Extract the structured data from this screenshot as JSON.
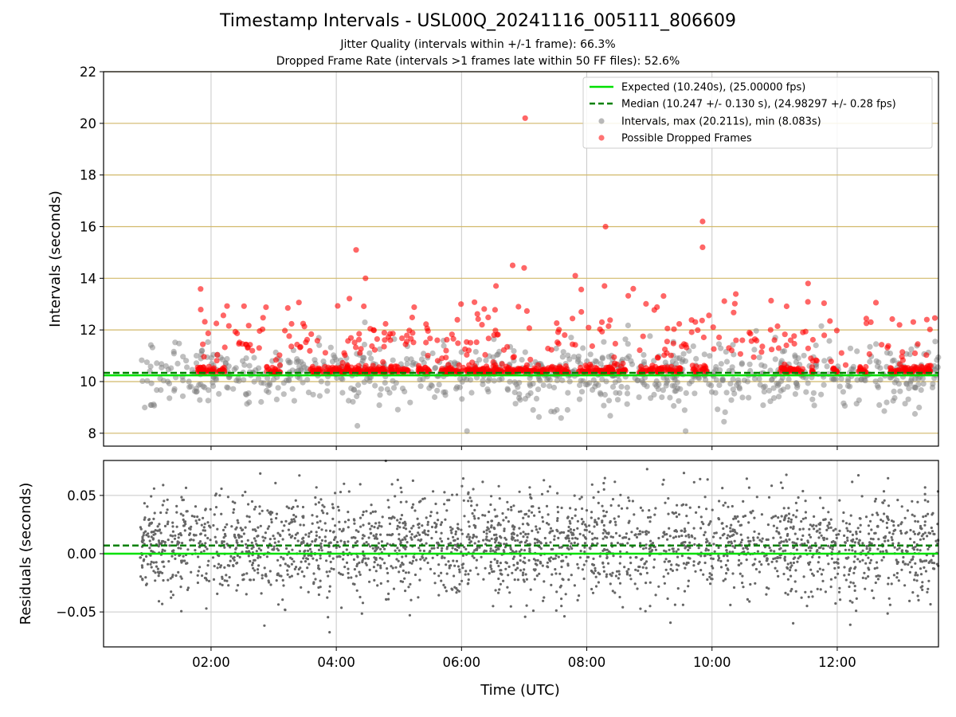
{
  "title": "Timestamp Intervals - USL00Q_20241116_005111_806609",
  "subtitle_line1": "Jitter Quality (intervals within +/-1 frame): 66.3%",
  "subtitle_line2": "Dropped Frame Rate (intervals >1 frames late within 50 FF files): 52.6%",
  "colors": {
    "expected": "#00e000",
    "median": "#008000",
    "intervals": "#808080",
    "dropped": "#ff0000",
    "hgrid": "#d2b96a",
    "vgrid": "#c8c8c8"
  },
  "chart_data": [
    {
      "type": "scatter",
      "panel": "top",
      "xlabel": "",
      "ylabel": "Intervals (seconds)",
      "xlim": [
        "00:17",
        "13:37"
      ],
      "ylim": [
        7.5,
        22
      ],
      "yticks": [
        8,
        10,
        12,
        14,
        16,
        18,
        20,
        22
      ],
      "grid": true,
      "legend_position": "upper right",
      "series": [
        {
          "name": "Expected (10.240s), (25.00000 fps)",
          "kind": "line",
          "y": 10.24
        },
        {
          "name": "Median (10.247 +/- 0.130 s), (24.98297 +/- 0.28 fps)",
          "kind": "dashed-line",
          "y": 10.247
        },
        {
          "name": "Intervals, max (20.211s), min (8.083s)",
          "kind": "points",
          "max": 20.211,
          "min": 8.083
        },
        {
          "name": "Possible Dropped Frames",
          "kind": "points",
          "notable_points": [
            {
              "x": "07:01",
              "y": 20.2
            },
            {
              "x": "09:51",
              "y": 16.2
            },
            {
              "x": "08:18",
              "y": 16.0
            },
            {
              "x": "09:51",
              "y": 15.2
            },
            {
              "x": "04:19",
              "y": 15.1
            },
            {
              "x": "06:49",
              "y": 14.5
            },
            {
              "x": "07:00",
              "y": 14.4
            },
            {
              "x": "04:28",
              "y": 14.0
            },
            {
              "x": "07:49",
              "y": 14.1
            },
            {
              "x": "11:32",
              "y": 13.8
            },
            {
              "x": "08:17",
              "y": 13.7
            },
            {
              "x": "06:33",
              "y": 13.7
            }
          ]
        }
      ]
    },
    {
      "type": "scatter",
      "panel": "bottom",
      "xlabel": "Time (UTC)",
      "ylabel": "Residuals (seconds)",
      "xlim": [
        "00:17",
        "13:37"
      ],
      "xticks": [
        "02:00",
        "04:00",
        "06:00",
        "08:00",
        "10:00",
        "12:00"
      ],
      "ylim": [
        -0.08,
        0.08
      ],
      "yticks": [
        0.05,
        0.0,
        -0.05
      ],
      "ytick_labels": [
        "0.05",
        "0.00",
        "−0.05"
      ],
      "grid": true,
      "series": [
        {
          "name": "",
          "kind": "line",
          "y": 0.0
        },
        {
          "name": "",
          "kind": "dashed-line",
          "y": 0.007
        },
        {
          "name": "",
          "kind": "points",
          "range": [
            -0.08,
            0.08
          ]
        }
      ]
    }
  ]
}
